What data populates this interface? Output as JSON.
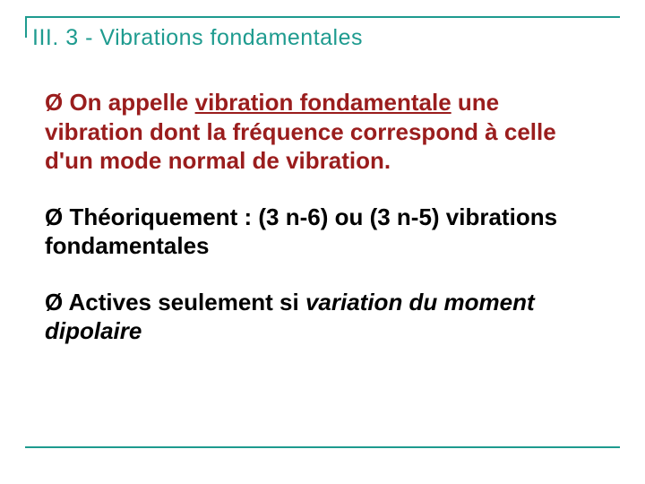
{
  "colors": {
    "teal": "#1e9b8f",
    "dark_red": "#9a1d1d",
    "black": "#000000",
    "background": "#ffffff"
  },
  "title": "III. 3 - Vibrations fondamentales",
  "bullets": [
    {
      "color": "dark_red",
      "pre": " On appelle ",
      "underlined": "vibration fondamentale",
      "post": " une vibration dont la fréquence correspond à celle d'un mode normal de vibration."
    },
    {
      "color": "black",
      "text": " Théoriquement : (3 n-6) ou (3 n-5) vibrations fondamentales"
    },
    {
      "color": "black",
      "pre": " Actives seulement si ",
      "italic": "variation du moment dipolaire"
    }
  ],
  "bullet_glyph": "Ø"
}
